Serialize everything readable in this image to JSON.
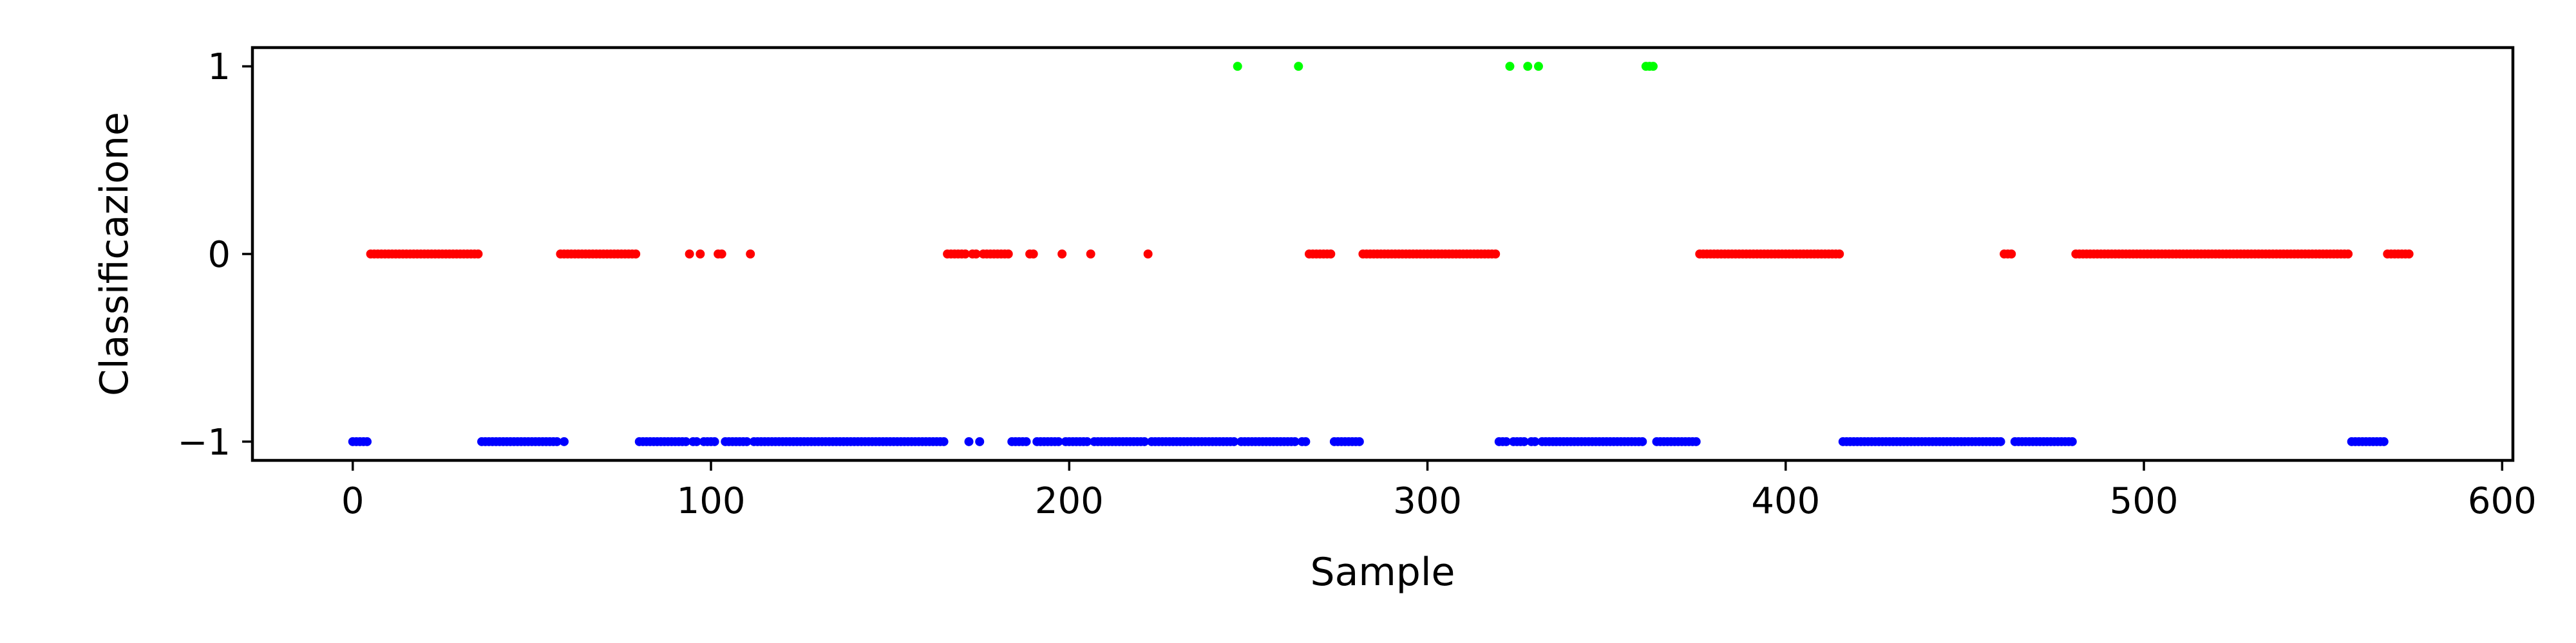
{
  "chart_data": {
    "type": "scatter",
    "xlabel": "Sample",
    "ylabel": "Classificazione",
    "xlim": [
      -28,
      603
    ],
    "ylim": [
      -1.1,
      1.1
    ],
    "xticks": [
      0,
      100,
      200,
      300,
      400,
      500,
      600
    ],
    "xtick_labels": [
      "0",
      "100",
      "200",
      "300",
      "400",
      "500",
      "600"
    ],
    "yticks": [
      1,
      0,
      -1
    ],
    "ytick_labels": [
      "1",
      "0",
      "−1"
    ],
    "grid": false,
    "legend": "none",
    "series": [
      {
        "y": 1,
        "color": "#00ff00",
        "x": [
          247,
          264,
          323,
          328,
          331,
          361,
          362,
          363
        ]
      },
      {
        "y": 0,
        "color": "#ff0000",
        "x": [
          5,
          6,
          7,
          8,
          9,
          10,
          11,
          12,
          13,
          14,
          15,
          16,
          17,
          18,
          19,
          20,
          21,
          22,
          23,
          24,
          25,
          26,
          27,
          28,
          29,
          30,
          31,
          32,
          33,
          34,
          35,
          58,
          59,
          60,
          61,
          62,
          63,
          64,
          65,
          66,
          67,
          68,
          69,
          70,
          71,
          72,
          73,
          74,
          75,
          76,
          77,
          78,
          79,
          94,
          97,
          102,
          103,
          111,
          166,
          167,
          168,
          169,
          170,
          171,
          173,
          174,
          176,
          177,
          178,
          179,
          180,
          181,
          182,
          183,
          189,
          190,
          198,
          206,
          222,
          267,
          268,
          269,
          270,
          271,
          272,
          273,
          282,
          283,
          284,
          285,
          286,
          287,
          288,
          289,
          290,
          291,
          292,
          293,
          294,
          295,
          296,
          297,
          298,
          299,
          300,
          301,
          302,
          303,
          304,
          305,
          306,
          307,
          308,
          309,
          310,
          311,
          312,
          313,
          314,
          315,
          316,
          317,
          318,
          319,
          376,
          377,
          378,
          379,
          380,
          381,
          382,
          383,
          384,
          385,
          386,
          387,
          388,
          389,
          390,
          391,
          392,
          393,
          394,
          395,
          396,
          397,
          398,
          399,
          400,
          401,
          402,
          403,
          404,
          405,
          406,
          407,
          408,
          409,
          410,
          411,
          412,
          413,
          414,
          415,
          461,
          462,
          463,
          481,
          482,
          483,
          484,
          485,
          486,
          487,
          488,
          489,
          490,
          491,
          492,
          493,
          494,
          495,
          496,
          497,
          498,
          499,
          500,
          501,
          502,
          503,
          504,
          505,
          506,
          507,
          508,
          509,
          510,
          511,
          512,
          513,
          514,
          515,
          516,
          517,
          518,
          519,
          520,
          521,
          522,
          523,
          524,
          525,
          526,
          527,
          528,
          529,
          530,
          531,
          532,
          533,
          534,
          535,
          536,
          537,
          538,
          539,
          540,
          541,
          542,
          543,
          544,
          545,
          546,
          547,
          548,
          549,
          550,
          551,
          552,
          553,
          554,
          555,
          556,
          557,
          568,
          569,
          570,
          571,
          572,
          573,
          574
        ]
      },
      {
        "y": -1,
        "color": "#0000ff",
        "x": [
          0,
          1,
          2,
          3,
          4,
          36,
          37,
          38,
          39,
          40,
          41,
          42,
          43,
          44,
          45,
          46,
          47,
          48,
          49,
          50,
          51,
          52,
          53,
          54,
          55,
          56,
          57,
          59,
          80,
          81,
          82,
          83,
          84,
          85,
          86,
          87,
          88,
          89,
          90,
          91,
          92,
          93,
          95,
          96,
          98,
          99,
          100,
          101,
          104,
          105,
          106,
          107,
          108,
          109,
          110,
          112,
          113,
          114,
          115,
          116,
          117,
          118,
          119,
          120,
          121,
          122,
          123,
          124,
          125,
          126,
          127,
          128,
          129,
          130,
          131,
          132,
          133,
          134,
          135,
          136,
          137,
          138,
          139,
          140,
          141,
          142,
          143,
          144,
          145,
          146,
          147,
          148,
          149,
          150,
          151,
          152,
          153,
          154,
          155,
          156,
          157,
          158,
          159,
          160,
          161,
          162,
          163,
          164,
          165,
          172,
          175,
          184,
          185,
          186,
          187,
          188,
          191,
          192,
          193,
          194,
          195,
          196,
          197,
          199,
          200,
          201,
          202,
          203,
          204,
          205,
          207,
          208,
          209,
          210,
          211,
          212,
          213,
          214,
          215,
          216,
          217,
          218,
          219,
          220,
          221,
          223,
          224,
          225,
          226,
          227,
          228,
          229,
          230,
          231,
          232,
          233,
          234,
          235,
          236,
          237,
          238,
          239,
          240,
          241,
          242,
          243,
          244,
          245,
          246,
          248,
          249,
          250,
          251,
          252,
          253,
          254,
          255,
          256,
          257,
          258,
          259,
          260,
          261,
          262,
          263,
          265,
          266,
          274,
          275,
          276,
          277,
          278,
          279,
          280,
          281,
          320,
          321,
          322,
          324,
          325,
          326,
          327,
          329,
          330,
          332,
          333,
          334,
          335,
          336,
          337,
          338,
          339,
          340,
          341,
          342,
          343,
          344,
          345,
          346,
          347,
          348,
          349,
          350,
          351,
          352,
          353,
          354,
          355,
          356,
          357,
          358,
          359,
          360,
          364,
          365,
          366,
          367,
          368,
          369,
          370,
          371,
          372,
          373,
          374,
          375,
          416,
          417,
          418,
          419,
          420,
          421,
          422,
          423,
          424,
          425,
          426,
          427,
          428,
          429,
          430,
          431,
          432,
          433,
          434,
          435,
          436,
          437,
          438,
          439,
          440,
          441,
          442,
          443,
          444,
          445,
          446,
          447,
          448,
          449,
          450,
          451,
          452,
          453,
          454,
          455,
          456,
          457,
          458,
          459,
          460,
          464,
          465,
          466,
          467,
          468,
          469,
          470,
          471,
          472,
          473,
          474,
          475,
          476,
          477,
          478,
          479,
          480,
          558,
          559,
          560,
          561,
          562,
          563,
          564,
          565,
          566,
          567
        ]
      }
    ]
  }
}
